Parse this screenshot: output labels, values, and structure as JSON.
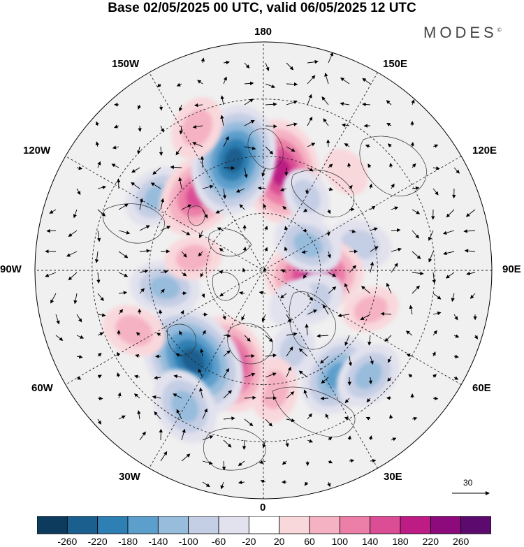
{
  "title": "Base 02/05/2025 00 UTC, valid 06/05/2025 12 UTC",
  "brand": {
    "name": "MODES",
    "mark": "©"
  },
  "longitude_labels": {
    "lon_180": "180",
    "lon_150e": "150E",
    "lon_120e": "120E",
    "lon_90e": "90E",
    "lon_60e": "60E",
    "lon_30e": "30E",
    "lon_0": "0",
    "lon_30w": "30W",
    "lon_60w": "60W",
    "lon_90w": "90W",
    "lon_120w": "120W",
    "lon_150w": "150W"
  },
  "vector_scale": {
    "label": "30"
  },
  "colorbar": {
    "ticks": [
      "-260",
      "-220",
      "-180",
      "-140",
      "-100",
      "-60",
      "-20",
      "20",
      "60",
      "100",
      "140",
      "180",
      "220",
      "260"
    ],
    "colors": [
      "#0d3b5e",
      "#1b5f8f",
      "#2e7fb3",
      "#5d9fcc",
      "#97bcdc",
      "#c4cee4",
      "#e2e2ee",
      "#ffffff",
      "#f9d8dc",
      "#f5b2c3",
      "#ec7fa8",
      "#db4d94",
      "#bc1c84",
      "#8c0a7c",
      "#5c0a6e"
    ]
  },
  "map": {
    "projection": "north polar stereographic",
    "anomalies": [
      {
        "lon": 170,
        "lat": 55,
        "value": 200
      },
      {
        "lon": 140,
        "lat": 45,
        "value": 40
      },
      {
        "lon": 105,
        "lat": 55,
        "value": -80
      },
      {
        "lon": 70,
        "lat": 50,
        "value": 60
      },
      {
        "lon": 85,
        "lat": 72,
        "value": 180
      },
      {
        "lon": 120,
        "lat": 72,
        "value": -100
      },
      {
        "lon": 150,
        "lat": 60,
        "value": -60
      },
      {
        "lon": 60,
        "lat": 70,
        "value": -80
      },
      {
        "lon": 20,
        "lat": 60,
        "value": -60
      },
      {
        "lon": 35,
        "lat": 45,
        "value": -140
      },
      {
        "lon": 45,
        "lat": 38,
        "value": -100
      },
      {
        "lon": 5,
        "lat": 48,
        "value": 80
      },
      {
        "lon": -20,
        "lat": 55,
        "value": 180
      },
      {
        "lon": -38,
        "lat": 50,
        "value": -240
      },
      {
        "lon": -30,
        "lat": 35,
        "value": -120
      },
      {
        "lon": -65,
        "lat": 40,
        "value": 80
      },
      {
        "lon": -80,
        "lat": 55,
        "value": -100
      },
      {
        "lon": -125,
        "lat": 45,
        "value": -100
      },
      {
        "lon": -140,
        "lat": 55,
        "value": 160
      },
      {
        "lon": -165,
        "lat": 50,
        "value": -220
      },
      {
        "lon": -155,
        "lat": 35,
        "value": 80
      },
      {
        "lon": -100,
        "lat": 65,
        "value": 60
      },
      {
        "lon": 40,
        "lat": 75,
        "value": -40
      }
    ]
  }
}
